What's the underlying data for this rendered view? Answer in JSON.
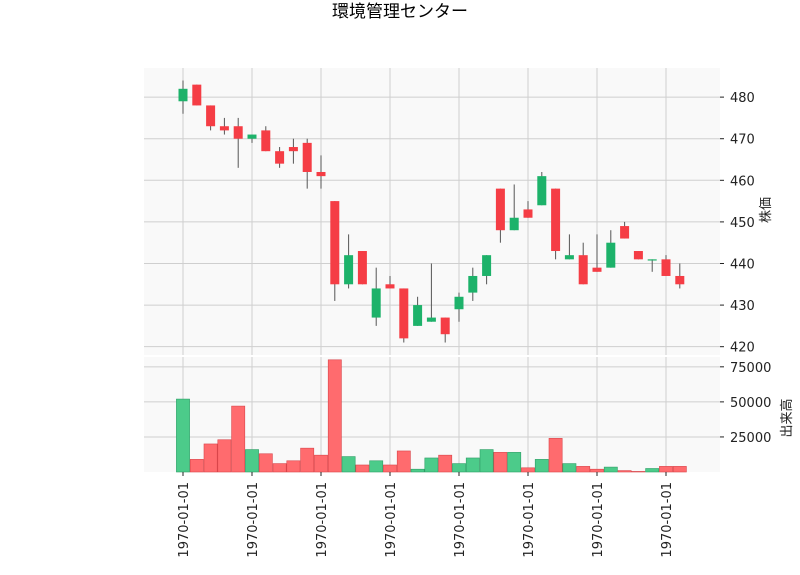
{
  "chart_data": {
    "type": "candlestick",
    "title": "環境管理センター",
    "price_ylabel": "株価",
    "volume_ylabel": "出来高",
    "price_ylim": [
      418,
      487
    ],
    "price_yticks": [
      420,
      430,
      440,
      450,
      460,
      470,
      480
    ],
    "volume_ylim": [
      0,
      82000
    ],
    "volume_yticks": [
      25000,
      50000,
      75000
    ],
    "volume_ytick_labels": [
      "25000",
      "50000",
      "75000"
    ],
    "x_tick_labels": [
      "1970-01-01",
      "1970-01-01",
      "1970-01-01",
      "1970-01-01",
      "1970-01-01",
      "1970-01-01",
      "1970-01-01",
      "1970-01-01"
    ],
    "x_tick_indices": [
      0,
      5,
      10,
      15,
      20,
      25,
      30,
      35
    ],
    "grid": true,
    "colors": {
      "up": "#1db26a",
      "down": "#f53d45",
      "volume_up": "#4ccb8a",
      "volume_down": "#ff6b6e",
      "wick": "#555555"
    },
    "candles": [
      {
        "o": 479,
        "h": 484,
        "l": 476,
        "c": 482,
        "v": 52000
      },
      {
        "o": 483,
        "h": 483,
        "l": 478,
        "c": 478,
        "v": 9000
      },
      {
        "o": 478,
        "h": 478,
        "l": 472,
        "c": 473,
        "v": 20000
      },
      {
        "o": 473,
        "h": 475,
        "l": 471,
        "c": 472,
        "v": 23000
      },
      {
        "o": 473,
        "h": 475,
        "l": 463,
        "c": 470,
        "v": 47000
      },
      {
        "o": 470,
        "h": 471,
        "l": 469,
        "c": 471,
        "v": 16000
      },
      {
        "o": 472,
        "h": 473,
        "l": 467,
        "c": 467,
        "v": 13000
      },
      {
        "o": 467,
        "h": 468,
        "l": 463,
        "c": 464,
        "v": 6000
      },
      {
        "o": 468,
        "h": 470,
        "l": 464,
        "c": 467,
        "v": 8000
      },
      {
        "o": 469,
        "h": 470,
        "l": 458,
        "c": 462,
        "v": 17000
      },
      {
        "o": 462,
        "h": 466,
        "l": 458,
        "c": 461,
        "v": 12000
      },
      {
        "o": 455,
        "h": 455,
        "l": 431,
        "c": 435,
        "v": 80000
      },
      {
        "o": 435,
        "h": 447,
        "l": 434,
        "c": 442,
        "v": 11000
      },
      {
        "o": 443,
        "h": 443,
        "l": 435,
        "c": 435,
        "v": 5000
      },
      {
        "o": 427,
        "h": 439,
        "l": 425,
        "c": 434,
        "v": 8000
      },
      {
        "o": 435,
        "h": 437,
        "l": 434,
        "c": 434,
        "v": 5000
      },
      {
        "o": 434,
        "h": 434,
        "l": 421,
        "c": 422,
        "v": 15000
      },
      {
        "o": 425,
        "h": 432,
        "l": 425,
        "c": 430,
        "v": 2000
      },
      {
        "o": 426,
        "h": 440,
        "l": 426,
        "c": 427,
        "v": 10000
      },
      {
        "o": 427,
        "h": 427,
        "l": 421,
        "c": 423,
        "v": 12000
      },
      {
        "o": 429,
        "h": 433,
        "l": 426,
        "c": 432,
        "v": 6000
      },
      {
        "o": 433,
        "h": 439,
        "l": 431,
        "c": 437,
        "v": 10000
      },
      {
        "o": 437,
        "h": 442,
        "l": 435,
        "c": 442,
        "v": 16000
      },
      {
        "o": 458,
        "h": 458,
        "l": 445,
        "c": 448,
        "v": 14000
      },
      {
        "o": 448,
        "h": 459,
        "l": 448,
        "c": 451,
        "v": 14000
      },
      {
        "o": 453,
        "h": 455,
        "l": 451,
        "c": 451,
        "v": 3000
      },
      {
        "o": 454,
        "h": 462,
        "l": 454,
        "c": 461,
        "v": 9000
      },
      {
        "o": 458,
        "h": 458,
        "l": 441,
        "c": 443,
        "v": 24000
      },
      {
        "o": 441,
        "h": 447,
        "l": 441,
        "c": 442,
        "v": 6000
      },
      {
        "o": 442,
        "h": 445,
        "l": 435,
        "c": 435,
        "v": 4000
      },
      {
        "o": 439,
        "h": 447,
        "l": 438,
        "c": 438,
        "v": 2000
      },
      {
        "o": 439,
        "h": 448,
        "l": 439,
        "c": 445,
        "v": 3500
      },
      {
        "o": 449,
        "h": 450,
        "l": 446,
        "c": 446,
        "v": 1000
      },
      {
        "o": 443,
        "h": 443,
        "l": 441,
        "c": 441,
        "v": 400
      },
      {
        "o": 441,
        "h": 441,
        "l": 438,
        "c": 441,
        "v": 2500
      },
      {
        "o": 441,
        "h": 442,
        "l": 437,
        "c": 437,
        "v": 4000
      },
      {
        "o": 437,
        "h": 440,
        "l": 434,
        "c": 435,
        "v": 4000
      }
    ]
  }
}
